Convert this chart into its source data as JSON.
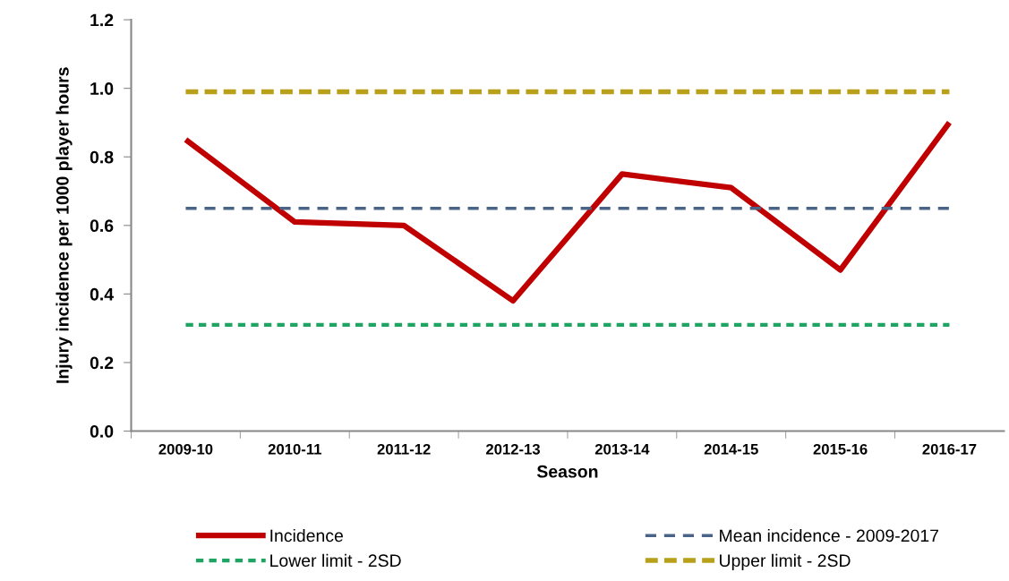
{
  "chart_data": {
    "type": "line",
    "xlabel": "Season",
    "ylabel": "Injury incidence per 1000 player hours",
    "categories": [
      "2009-10",
      "2010-11",
      "2011-12",
      "2012-13",
      "2013-14",
      "2014-15",
      "2015-16",
      "2016-17"
    ],
    "series": [
      {
        "name": "Incidence",
        "color": "#c00000",
        "line_style": "solid",
        "values": [
          0.85,
          0.61,
          0.6,
          0.38,
          0.75,
          0.71,
          0.47,
          0.9
        ]
      },
      {
        "name": "Mean incidence - 2009-2017",
        "color": "#4a6488",
        "line_style": "dashed",
        "values": [
          0.65,
          0.65,
          0.65,
          0.65,
          0.65,
          0.65,
          0.65,
          0.65
        ]
      },
      {
        "name": "Lower limit - 2SD",
        "color": "#1fa463",
        "line_style": "dotted",
        "values": [
          0.31,
          0.31,
          0.31,
          0.31,
          0.31,
          0.31,
          0.31,
          0.31
        ]
      },
      {
        "name": "Upper limit - 2SD",
        "color": "#b8a01a",
        "line_style": "dashed",
        "values": [
          0.99,
          0.99,
          0.99,
          0.99,
          0.99,
          0.99,
          0.99,
          0.99
        ]
      }
    ],
    "ylim": [
      0,
      1.2
    ],
    "yticks": [
      {
        "value": 0,
        "label": "0.0"
      },
      0.2,
      0.4,
      0.6,
      0.8,
      {
        "value": 1,
        "label": "1.0"
      },
      1.2
    ],
    "grid": false,
    "legend": "bottom",
    "marker": "none"
  }
}
